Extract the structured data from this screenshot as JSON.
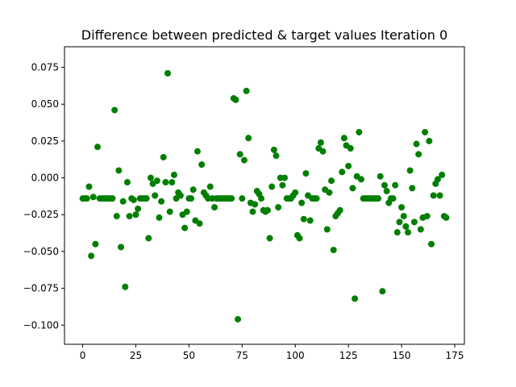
{
  "chart_data": {
    "type": "scatter",
    "title": "Difference between predicted & target values Iteration 0",
    "xlabel": "",
    "ylabel": "",
    "xlim": [
      -8.55,
      179.55
    ],
    "ylim": [
      -0.113,
      0.089
    ],
    "x_ticks": [
      0,
      25,
      50,
      75,
      100,
      125,
      150,
      175
    ],
    "x_tick_labels": [
      "0",
      "25",
      "50",
      "75",
      "100",
      "125",
      "150",
      "175"
    ],
    "y_ticks": [
      -0.1,
      -0.075,
      -0.05,
      -0.025,
      0.0,
      0.025,
      0.05,
      0.075
    ],
    "y_tick_labels": [
      "−0.100",
      "−0.075",
      "−0.050",
      "−0.025",
      "0.000",
      "0.025",
      "0.050",
      "0.075"
    ],
    "grid": false,
    "marker_color": "#007f00",
    "series": [
      {
        "x": [
          0,
          1,
          2,
          3,
          4,
          5,
          6,
          7,
          8,
          9,
          10,
          11,
          12,
          13,
          14,
          15,
          16,
          17,
          18,
          19,
          20,
          21,
          22,
          23,
          24,
          25,
          26,
          27,
          28,
          29,
          30,
          31,
          32,
          33,
          34,
          35,
          36,
          37,
          38,
          39,
          40,
          41,
          42,
          43,
          44,
          45,
          46,
          47,
          48,
          49,
          50,
          51,
          52,
          53,
          54,
          55,
          56,
          57,
          58,
          59,
          60,
          61,
          62,
          63,
          64,
          65,
          66,
          67,
          68,
          69,
          70,
          71,
          72,
          73,
          74,
          75,
          76,
          77,
          78,
          79,
          80,
          81,
          82,
          83,
          84,
          85,
          86,
          87,
          88,
          89,
          90,
          91,
          92,
          93,
          94,
          95,
          96,
          97,
          98,
          99,
          100,
          101,
          102,
          103,
          104,
          105,
          106,
          107,
          108,
          109,
          110,
          111,
          112,
          113,
          114,
          115,
          116,
          117,
          118,
          119,
          120,
          121,
          122,
          123,
          124,
          125,
          126,
          127,
          128,
          129,
          130,
          131,
          132,
          133,
          134,
          135,
          136,
          137,
          138,
          139,
          140,
          141,
          142,
          143,
          144,
          145,
          146,
          147,
          148,
          149,
          150,
          151,
          152,
          153,
          154,
          155,
          156,
          157,
          158,
          159,
          160,
          161,
          162,
          163,
          164,
          165,
          166,
          167,
          168,
          169,
          170,
          171
        ],
        "y": [
          -0.014,
          -0.014,
          -0.014,
          -0.006,
          -0.053,
          -0.013,
          -0.045,
          0.021,
          -0.014,
          -0.014,
          -0.014,
          -0.014,
          -0.014,
          -0.014,
          -0.014,
          0.046,
          -0.026,
          0.005,
          -0.047,
          -0.016,
          -0.074,
          -0.003,
          -0.026,
          -0.014,
          -0.015,
          -0.025,
          -0.021,
          -0.014,
          -0.014,
          -0.014,
          -0.014,
          -0.041,
          0.0,
          -0.004,
          -0.012,
          -0.002,
          -0.027,
          -0.016,
          0.014,
          -0.003,
          0.071,
          -0.023,
          -0.003,
          0.002,
          -0.014,
          -0.01,
          -0.012,
          -0.025,
          -0.034,
          -0.023,
          -0.014,
          -0.014,
          -0.008,
          -0.029,
          0.018,
          -0.031,
          0.009,
          -0.01,
          -0.012,
          -0.014,
          -0.006,
          -0.014,
          -0.02,
          -0.014,
          -0.014,
          -0.014,
          -0.014,
          -0.014,
          -0.014,
          -0.014,
          -0.014,
          0.054,
          0.053,
          -0.096,
          0.016,
          -0.014,
          0.012,
          0.059,
          0.027,
          -0.017,
          -0.023,
          -0.018,
          -0.009,
          -0.011,
          -0.014,
          -0.022,
          -0.023,
          -0.022,
          -0.041,
          -0.006,
          0.019,
          0.015,
          -0.02,
          0.0,
          -0.005,
          0.0,
          -0.014,
          -0.014,
          -0.014,
          -0.012,
          -0.01,
          -0.039,
          -0.041,
          -0.017,
          -0.028,
          0.003,
          -0.012,
          -0.029,
          -0.014,
          -0.014,
          -0.014,
          0.02,
          0.024,
          0.018,
          -0.008,
          -0.035,
          -0.01,
          -0.002,
          -0.049,
          -0.026,
          -0.024,
          -0.022,
          0.004,
          0.027,
          0.022,
          0.008,
          0.02,
          -0.007,
          -0.082,
          0.001,
          0.031,
          -0.001,
          -0.014,
          -0.014,
          -0.014,
          -0.014,
          -0.014,
          -0.014,
          -0.014,
          -0.014,
          0.001,
          -0.077,
          -0.005,
          -0.009,
          -0.017,
          -0.014,
          -0.014,
          -0.005,
          -0.037,
          -0.03,
          -0.02,
          -0.026,
          -0.033,
          -0.037,
          0.005,
          -0.007,
          -0.03,
          0.023,
          0.016,
          -0.035,
          -0.027,
          0.031,
          -0.026,
          0.025,
          -0.045,
          -0.012,
          -0.004,
          -0.001,
          -0.012,
          0.002,
          -0.026,
          -0.027
        ]
      }
    ]
  }
}
